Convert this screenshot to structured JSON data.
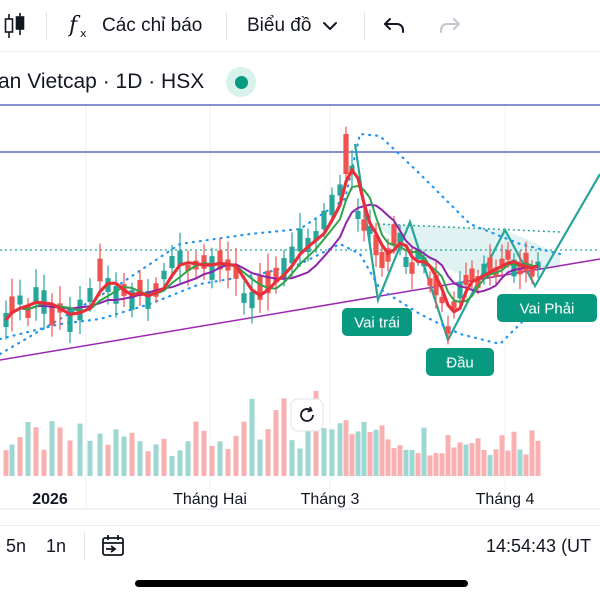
{
  "toolbar": {
    "candle_icon": "candlestick-icon",
    "indicators_label": "Các chỉ báo",
    "chart_type_label": "Biểu đồ",
    "undo_icon": "undo-icon",
    "redo_icon": "redo-icon"
  },
  "symbol": {
    "title": "an Vietcap · 1D · HSX",
    "market_status": "open"
  },
  "chart_data": {
    "type": "candlestick",
    "x_labels": [
      "2026",
      "Tháng Hai",
      "Tháng 3",
      "Tháng 4"
    ],
    "annotations": [
      "Vai trái",
      "Đầu",
      "Vai Phải"
    ],
    "pattern": "head-and-shoulders",
    "colors": {
      "up": "#26a69a",
      "down": "#ef5350",
      "ma_fast": "#e8303a",
      "ma_mid": "#2fa34a",
      "ma_slow": "#8e24aa",
      "trendline": "#9c27b0",
      "horizontal_lines": "#3f51b5",
      "dotted_guides": "#2196f3",
      "pattern_label_bg": "#089981"
    }
  },
  "bottom_bar": {
    "range_5n": "5n",
    "range_1n": "1n",
    "date_range_icon": "calendar-range-icon",
    "clock": "14:54:43 (UT"
  },
  "colors": {
    "accent": "#089981",
    "text": "#131722"
  }
}
